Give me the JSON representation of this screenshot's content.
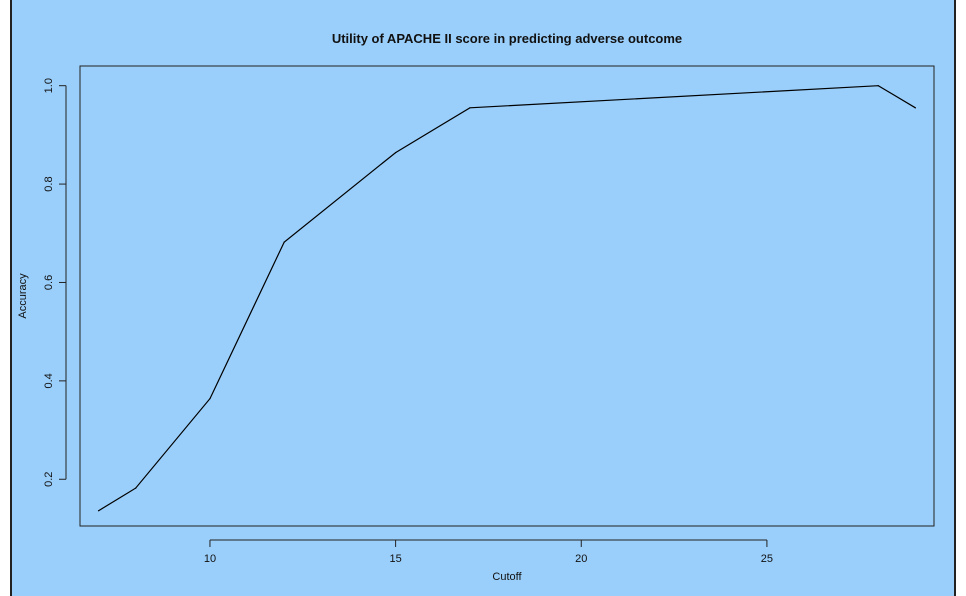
{
  "chart_data": {
    "type": "line",
    "title": "Utility of APACHE II score in predicting adverse outcome",
    "xlabel": "Cutoff",
    "ylabel": "Accuracy",
    "xlim": [
      6.5,
      29.5
    ],
    "ylim": [
      0.105,
      1.04
    ],
    "x_ticks": [
      10,
      15,
      20,
      25
    ],
    "y_ticks": [
      0.2,
      0.4,
      0.6,
      0.8,
      1.0
    ],
    "y_tick_labels": [
      "0.2",
      "0.4",
      "0.6",
      "0.8",
      "1.0"
    ],
    "x_tick_labels": [
      "10",
      "15",
      "20",
      "25"
    ],
    "grid": false,
    "background": "#9acffb",
    "line_color": "#000000",
    "series": [
      {
        "x": [
          7,
          8,
          10,
          12,
          15,
          17,
          28,
          29
        ],
        "y": [
          0.136,
          0.182,
          0.364,
          0.682,
          0.864,
          0.955,
          1.0,
          0.955
        ]
      }
    ]
  }
}
